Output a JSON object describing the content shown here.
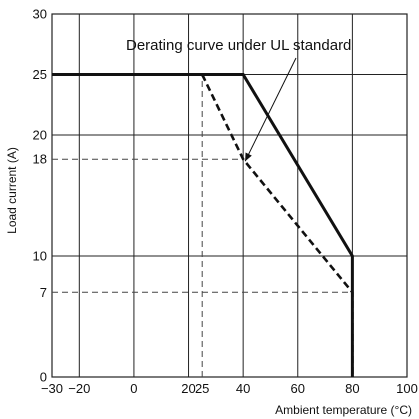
{
  "chart_data": {
    "type": "line",
    "title": "",
    "xlabel": "Ambient temperature (°C)",
    "ylabel": "Load current (A)",
    "xlim": [
      -30,
      100
    ],
    "ylim": [
      0,
      30
    ],
    "grid": true,
    "x_gridlines": [
      -30,
      -20,
      0,
      20,
      40,
      60,
      80,
      100
    ],
    "y_gridlines": [
      0,
      10,
      20,
      25,
      30
    ],
    "x_ticks": [
      {
        "value": -30,
        "label": "−30"
      },
      {
        "value": -20,
        "label": "−20"
      },
      {
        "value": 0,
        "label": "0"
      },
      {
        "value": 20,
        "label": "20"
      },
      {
        "value": 25,
        "label": "25"
      },
      {
        "value": 40,
        "label": "40"
      },
      {
        "value": 60,
        "label": "60"
      },
      {
        "value": 80,
        "label": "80"
      },
      {
        "value": 100,
        "label": "100"
      }
    ],
    "y_ticks": [
      {
        "value": 0,
        "label": "0"
      },
      {
        "value": 7,
        "label": "7"
      },
      {
        "value": 10,
        "label": "10"
      },
      {
        "value": 18,
        "label": "18"
      },
      {
        "value": 20,
        "label": "20"
      },
      {
        "value": 25,
        "label": "25"
      },
      {
        "value": 30,
        "label": "30"
      }
    ],
    "series": [
      {
        "style": "solid",
        "x": [
          -30,
          40,
          80,
          80
        ],
        "y": [
          25,
          25,
          10,
          0
        ]
      },
      {
        "name": "Derating curve under UL standard",
        "style": "dashed",
        "x": [
          25,
          40,
          80,
          80
        ],
        "y": [
          25,
          18,
          7,
          0
        ]
      }
    ],
    "reference_lines": [
      {
        "x": [
          25,
          25
        ],
        "y": [
          0,
          25
        ]
      },
      {
        "x": [
          -30,
          40
        ],
        "y": [
          18,
          18
        ]
      },
      {
        "x": [
          -30,
          80
        ],
        "y": [
          7,
          7
        ]
      }
    ],
    "annotations": [
      {
        "text": "Derating curve under UL standard",
        "points_to": {
          "x": 40,
          "y": 18
        }
      }
    ]
  }
}
